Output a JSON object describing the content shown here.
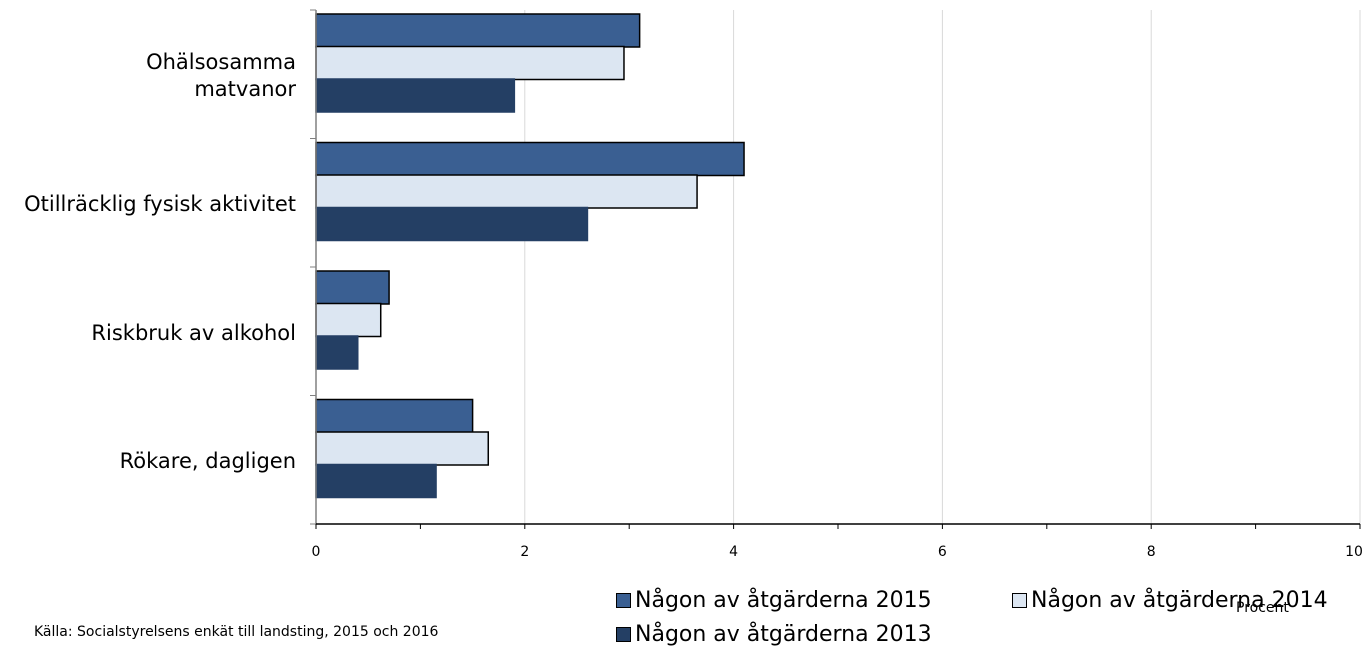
{
  "chart_data": {
    "type": "bar",
    "orientation": "horizontal",
    "categories": [
      "Ohälsosamma\nmatvanor",
      "Otillräcklig fysisk aktivitet",
      "Riskbruk av alkohol",
      "Rökare, dagligen"
    ],
    "series": [
      {
        "name": "Någon av åtgärderna 2015",
        "color": "#3a5f92",
        "values": [
          3.1,
          4.1,
          0.7,
          1.5
        ]
      },
      {
        "name": "Någon av åtgärderna 2014",
        "color": "#dce6f2",
        "values": [
          2.95,
          3.65,
          0.62,
          1.65
        ]
      },
      {
        "name": "Någon av åtgärderna 2013",
        "color": "#243f64",
        "values": [
          1.9,
          2.6,
          0.4,
          1.15
        ]
      }
    ],
    "x_ticks": [
      "0",
      "2",
      "4",
      "6",
      "8",
      "10"
    ],
    "xlim": [
      0,
      10
    ],
    "xlabel": "Procent",
    "grid": true,
    "legend_position": "bottom"
  },
  "source": "Källa: Socialstyrelsens enkät till landsting, 2015 och 2016"
}
